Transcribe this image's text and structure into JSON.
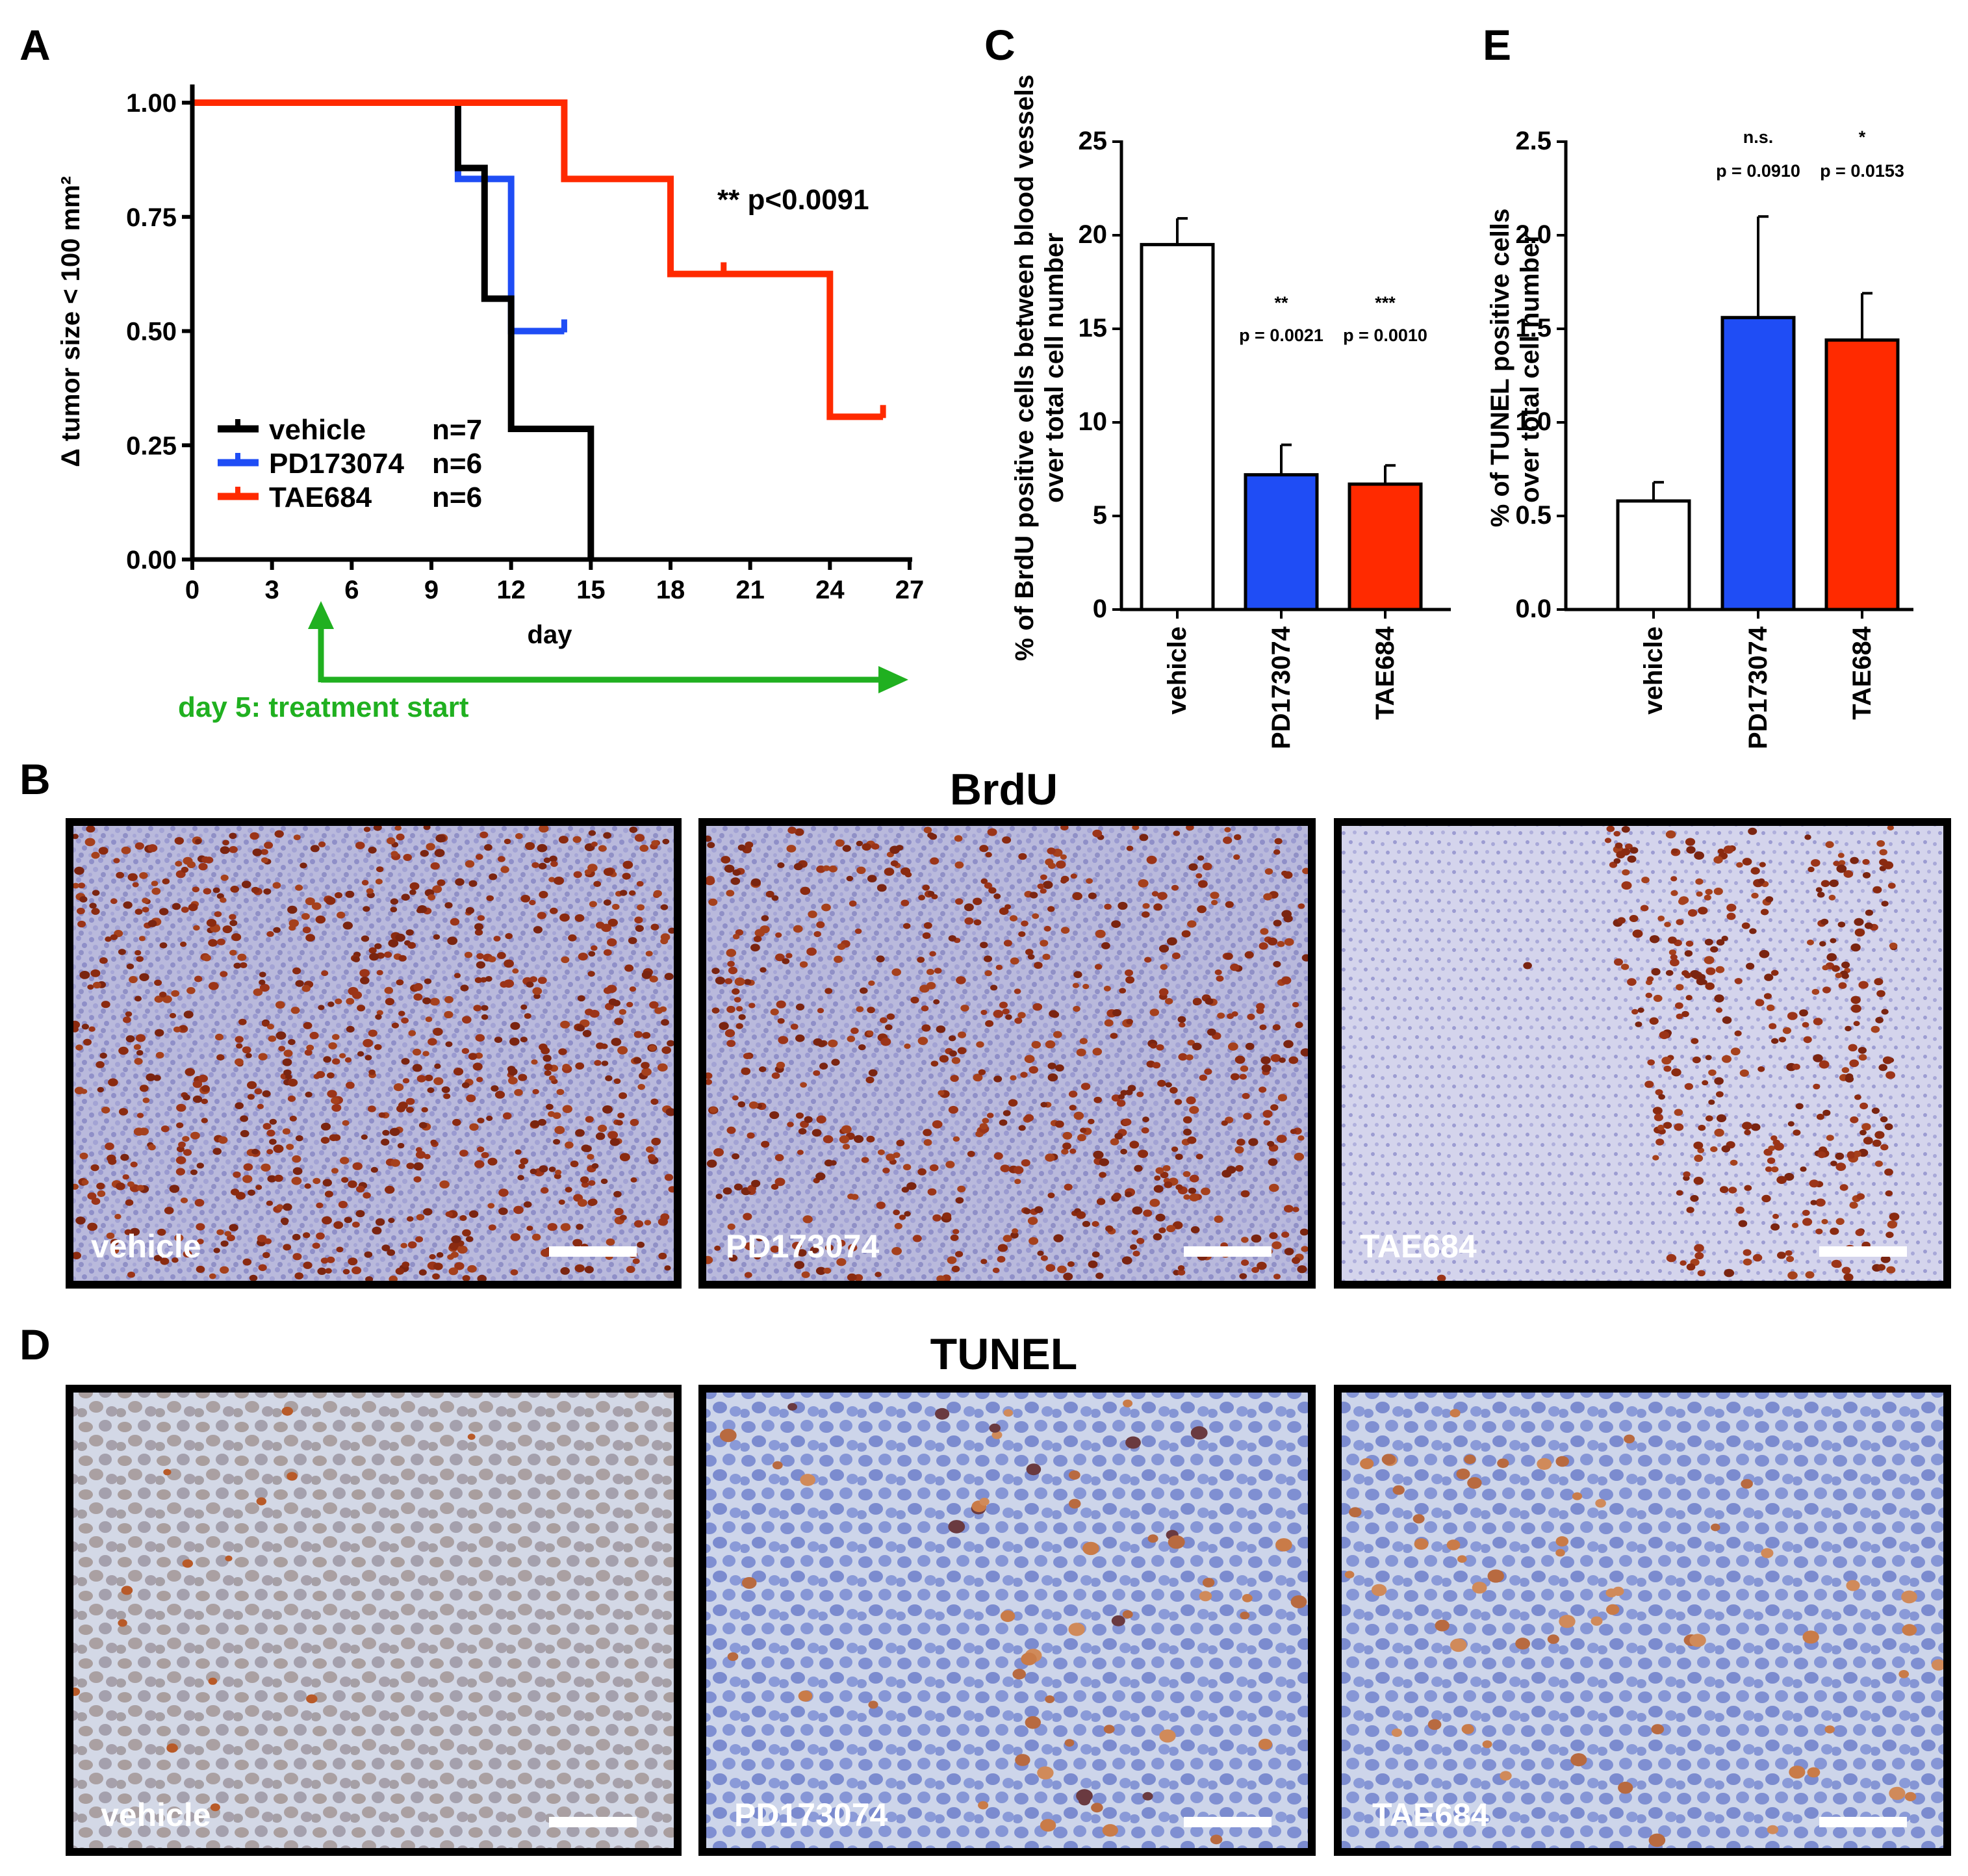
{
  "panels": {
    "A": "A",
    "B": "B",
    "C": "C",
    "D": "D",
    "E": "E"
  },
  "section_titles": {
    "brdu": "BrdU",
    "tunel": "TUNEL"
  },
  "annotation": {
    "treatment_start": "day 5: treatment start",
    "survival_p": "** p<0.0091"
  },
  "colors": {
    "vehicle": "#000000",
    "pd": "#1f4df5",
    "tae": "#ff2a00",
    "arrow": "#20b020"
  },
  "image_labels": [
    "vehicle",
    "PD173074",
    "TAE684"
  ],
  "chart_data": [
    {
      "panel": "A",
      "type": "line",
      "subtype": "kaplan-meier",
      "xlabel": "day",
      "ylabel": "Δ tumor size < 100 mm²",
      "xlim": [
        0,
        27
      ],
      "ylim": [
        0,
        1
      ],
      "xticks": [
        "0",
        "3",
        "6",
        "9",
        "12",
        "15",
        "18",
        "21",
        "24",
        "27"
      ],
      "yticks": [
        "0.00",
        "0.25",
        "0.50",
        "0.75",
        "1.00"
      ],
      "grid": false,
      "legend": "bottom-left",
      "series": [
        {
          "name": "vehicle",
          "n_label": "n=7",
          "steps": [
            [
              0,
              1.0
            ],
            [
              10,
              1.0
            ],
            [
              10,
              0.857
            ],
            [
              11,
              0.857
            ],
            [
              11,
              0.571
            ],
            [
              12,
              0.571
            ],
            [
              12,
              0.286
            ],
            [
              15,
              0.286
            ],
            [
              15,
              0.0
            ]
          ],
          "censored": []
        },
        {
          "name": "PD173074",
          "n_label": "n=6",
          "steps": [
            [
              0,
              1.0
            ],
            [
              10,
              1.0
            ],
            [
              10,
              0.833
            ],
            [
              12,
              0.833
            ],
            [
              12,
              0.5
            ],
            [
              14,
              0.5
            ]
          ],
          "censored": [
            [
              14,
              0.5
            ]
          ]
        },
        {
          "name": "TAE684",
          "n_label": "n=6",
          "steps": [
            [
              0,
              1.0
            ],
            [
              14,
              1.0
            ],
            [
              14,
              0.833
            ],
            [
              18,
              0.833
            ],
            [
              18,
              0.625
            ],
            [
              24,
              0.625
            ],
            [
              24,
              0.3125
            ],
            [
              26,
              0.3125
            ]
          ],
          "censored": [
            [
              20,
              0.625
            ],
            [
              26,
              0.3125
            ]
          ]
        }
      ]
    },
    {
      "panel": "C",
      "type": "bar",
      "ylabel_lines": [
        "% of BrdU positive cells between blood vessels",
        "over total cell number"
      ],
      "categories": [
        "vehicle",
        "PD173074",
        "TAE684"
      ],
      "values": [
        19.5,
        7.2,
        6.7
      ],
      "errors": [
        1.4,
        1.6,
        1.0
      ],
      "colors": [
        "#ffffff",
        "#1f4df5",
        "#ff2a00"
      ],
      "ylim": [
        0,
        25
      ],
      "yticks": [
        "0",
        "5",
        "10",
        "15",
        "20",
        "25"
      ],
      "significance": [
        {
          "category": "PD173074",
          "stars": "**",
          "p": "p = 0.0021"
        },
        {
          "category": "TAE684",
          "stars": "***",
          "p": "p = 0.0010"
        }
      ]
    },
    {
      "panel": "E",
      "type": "bar",
      "ylabel_lines": [
        "% of TUNEL positive cells",
        "over total cell number"
      ],
      "categories": [
        "vehicle",
        "PD173074",
        "TAE684"
      ],
      "values": [
        0.58,
        1.56,
        1.44
      ],
      "errors": [
        0.1,
        0.54,
        0.25
      ],
      "colors": [
        "#ffffff",
        "#1f4df5",
        "#ff2a00"
      ],
      "ylim": [
        0,
        2.5
      ],
      "yticks": [
        "0.0",
        "0.5",
        "1.0",
        "1.5",
        "2.0",
        "2.5"
      ],
      "significance": [
        {
          "category": "PD173074",
          "stars": "n.s.",
          "p": "p = 0.0910"
        },
        {
          "category": "TAE684",
          "stars": "*",
          "p": "p = 0.0153"
        }
      ]
    }
  ]
}
